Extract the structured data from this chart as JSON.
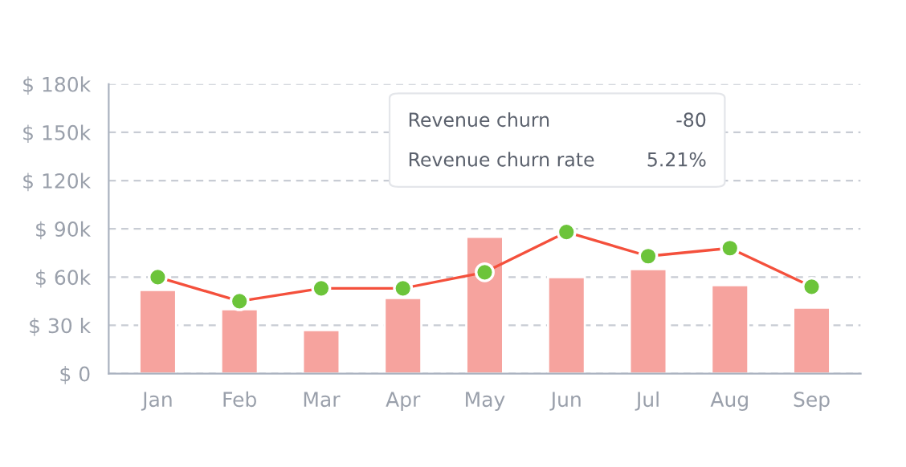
{
  "chart_data": {
    "type": "bar",
    "categories": [
      "Jan",
      "Feb",
      "Mar",
      "Apr",
      "May",
      "Jun",
      "Jul",
      "Aug",
      "Sep"
    ],
    "series": [
      {
        "color": "#f6a39e",
        "values": [
          52,
          40,
          27,
          47,
          85,
          60,
          65,
          55,
          41
        ]
      },
      {
        "type": "line",
        "color": "#f4503c",
        "colors": [
          "#6cc43a",
          "#6cc43a",
          "#6cc43a",
          "#6cc43a",
          "#6cc43a",
          "#6cc43a",
          "#6cc43a",
          "#6cc43a",
          "#6cc43a"
        ],
        "marker": "circle",
        "line_style": "solid",
        "values": [
          60,
          45,
          53,
          53,
          63,
          88,
          73,
          78,
          54
        ]
      }
    ],
    "ylim": [
      0,
      180
    ],
    "yticks": [
      {
        "value": 0,
        "label": "$ 0"
      },
      {
        "value": 30,
        "label": "$ 30 k"
      },
      {
        "value": 60,
        "label": "$ 60k"
      },
      {
        "value": 90,
        "label": "$ 90k"
      },
      {
        "value": 120,
        "label": "$ 120k"
      },
      {
        "value": 150,
        "label": "$ 150k"
      },
      {
        "value": 180,
        "label": "$ 180k"
      }
    ],
    "grid": "y",
    "annotations": [
      "Revenue churn",
      "-80",
      "Revenue churn rate",
      "5.21%"
    ]
  }
}
